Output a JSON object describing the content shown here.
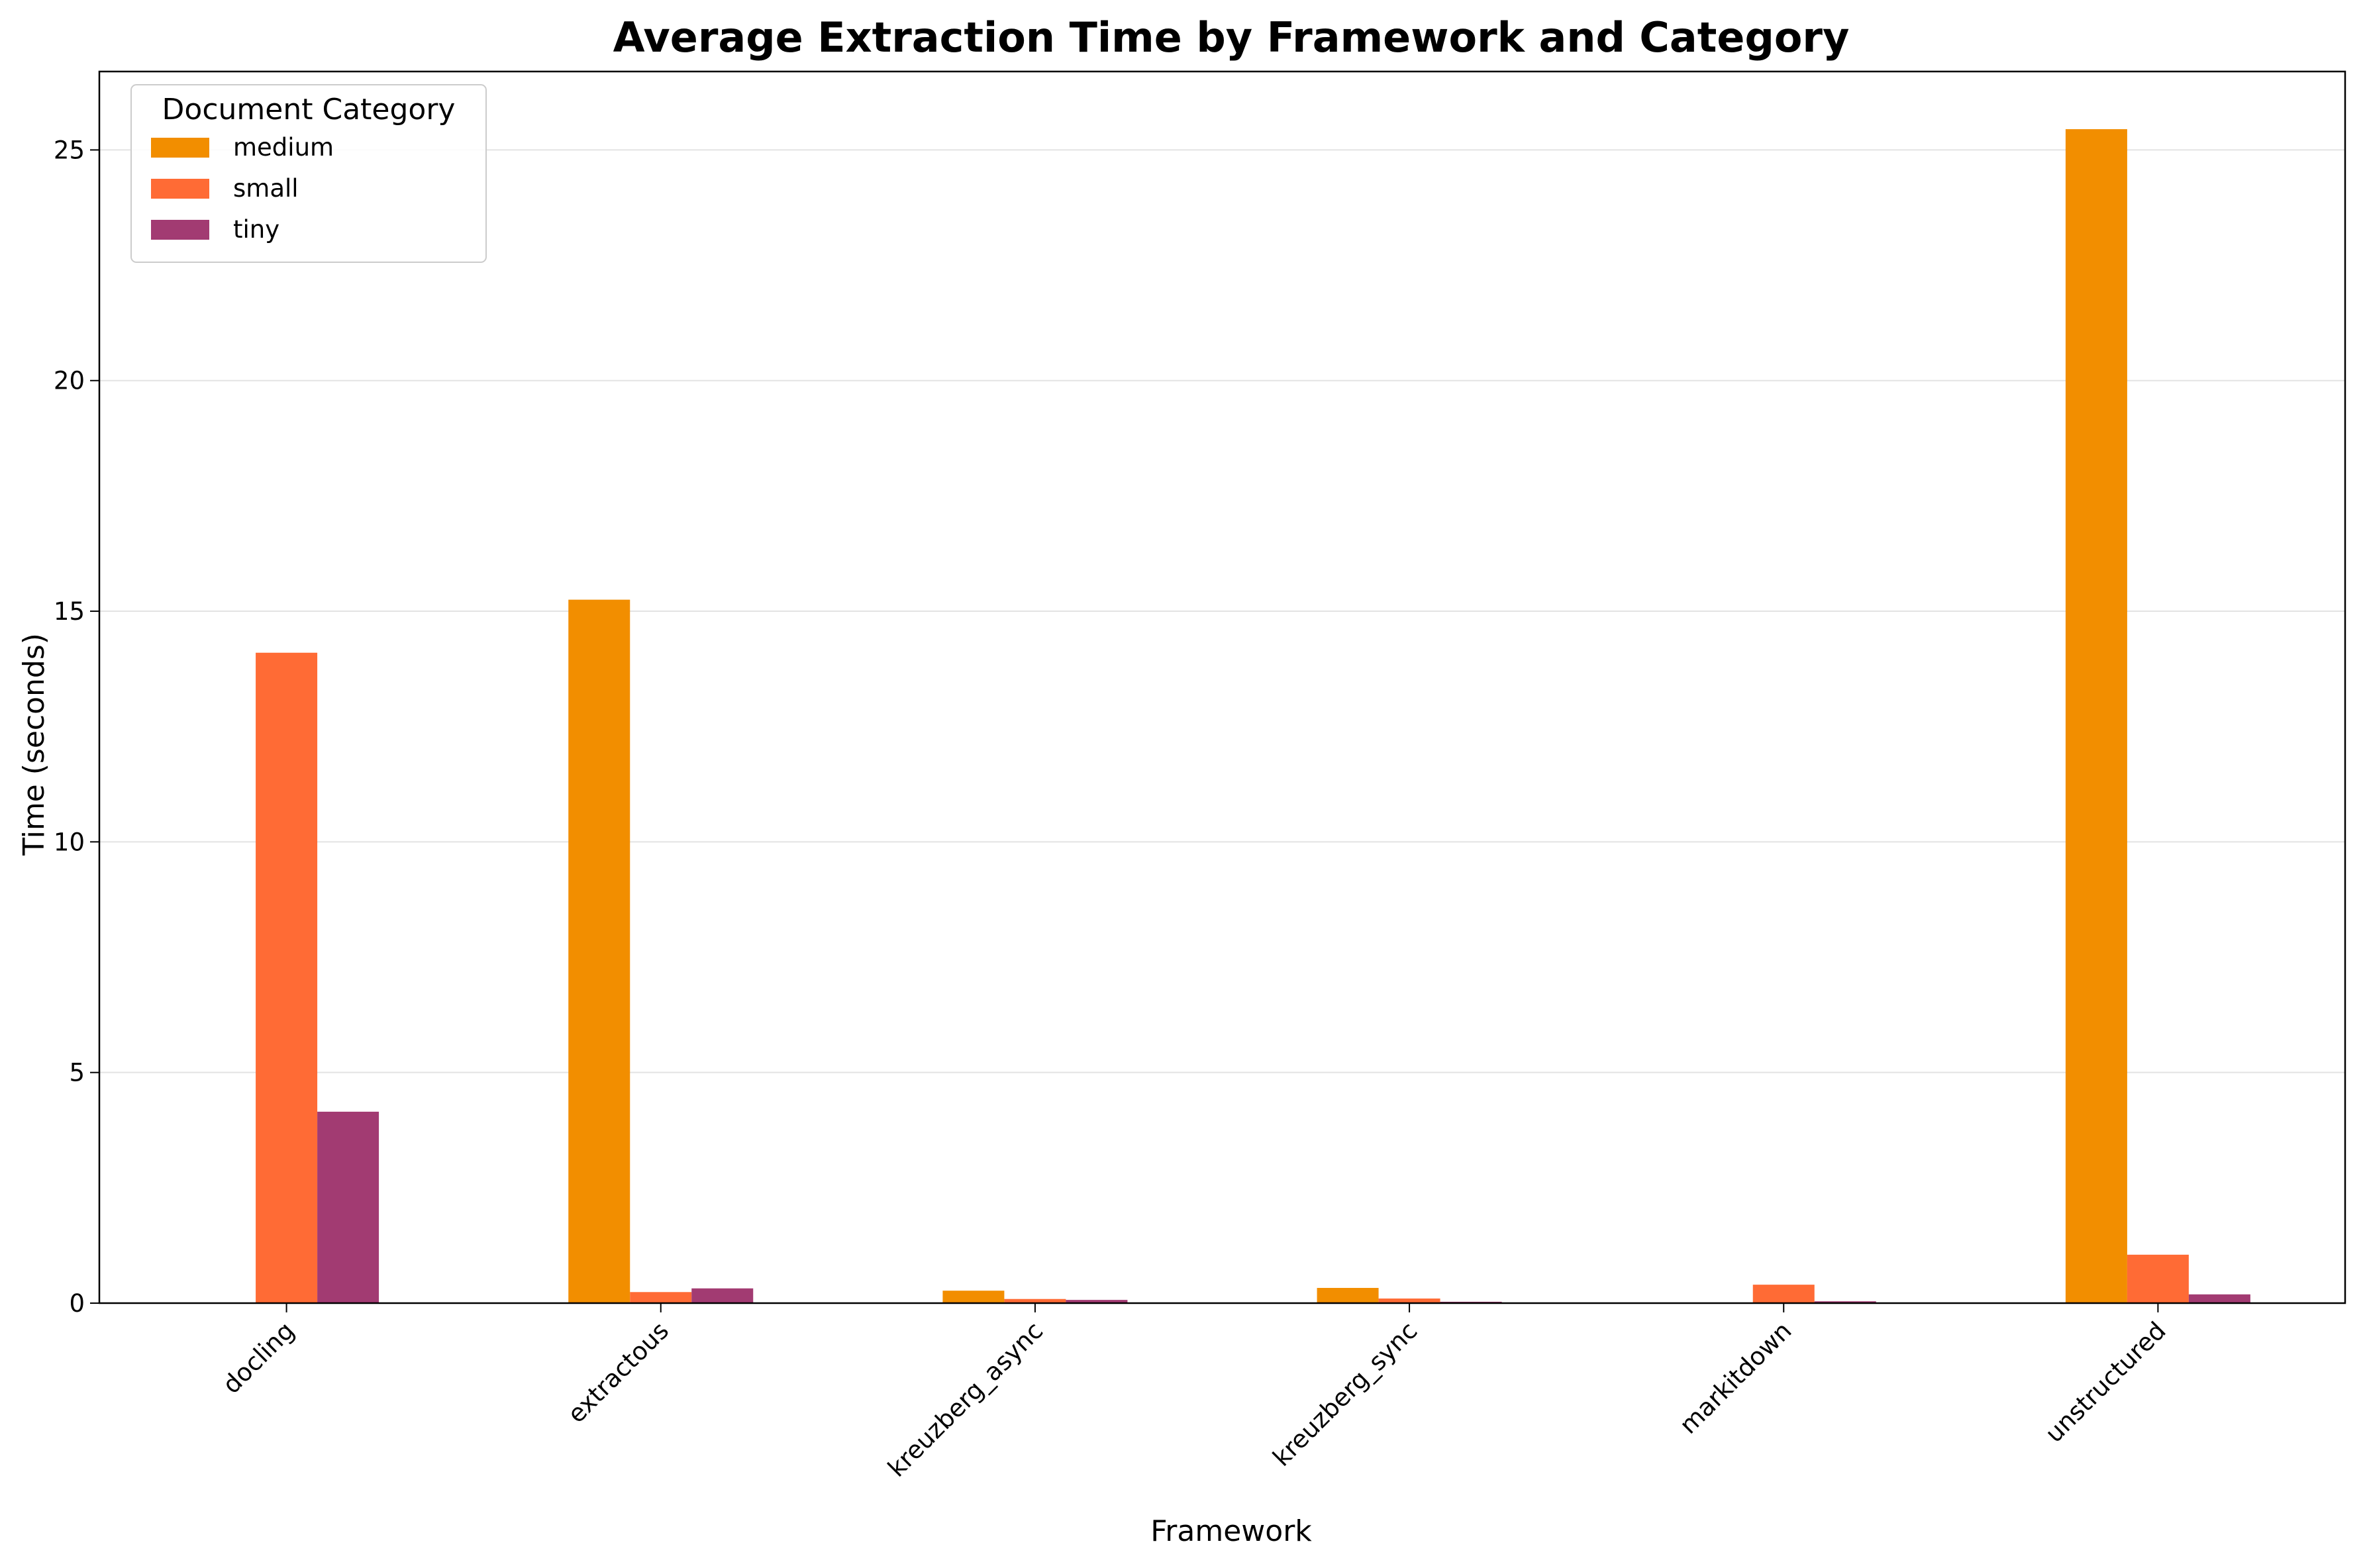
{
  "chart_data": {
    "type": "bar",
    "title": "Average Extraction Time by Framework and Category",
    "xlabel": "Framework",
    "ylabel": "Time (seconds)",
    "categories": [
      "docling",
      "extractous",
      "kreuzberg_async",
      "kreuzberg_sync",
      "markitdown",
      "unstructured"
    ],
    "series": [
      {
        "name": "medium",
        "color": "#F28E00",
        "values": [
          0,
          15.25,
          0.27,
          0.33,
          0,
          25.45
        ]
      },
      {
        "name": "small",
        "color": "#FF6B35",
        "values": [
          14.1,
          0.24,
          0.09,
          0.1,
          0.4,
          1.05
        ]
      },
      {
        "name": "tiny",
        "color": "#A23B72",
        "values": [
          4.15,
          0.32,
          0.07,
          0.03,
          0.04,
          0.19
        ]
      }
    ],
    "ylim": [
      0,
      26.7
    ],
    "yticks": [
      0,
      5,
      10,
      15,
      20,
      25
    ],
    "grid": "y",
    "legend": {
      "title": "Document Category",
      "placement": "top-left"
    }
  }
}
